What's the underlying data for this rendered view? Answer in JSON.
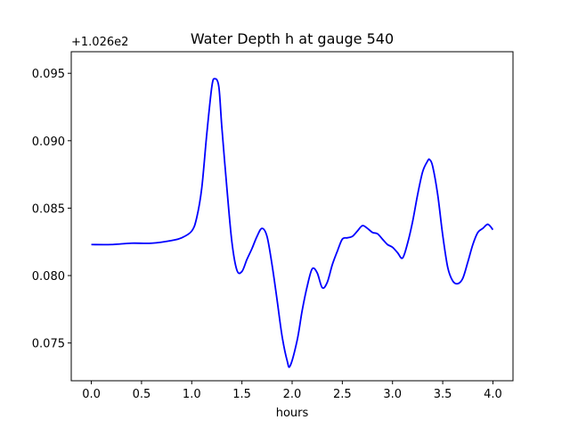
{
  "chart_data": {
    "type": "line",
    "title": "Water Depth h at gauge 540",
    "xlabel": "hours",
    "ylabel": "",
    "y_offset_label": "+1.026e2",
    "xlim": [
      -0.2,
      4.2
    ],
    "ylim": [
      0.0722,
      0.0966
    ],
    "x_ticks": [
      0.0,
      0.5,
      1.0,
      1.5,
      2.0,
      2.5,
      3.0,
      3.5,
      4.0
    ],
    "x_tick_labels": [
      "0.0",
      "0.5",
      "1.0",
      "1.5",
      "2.0",
      "2.5",
      "3.0",
      "3.5",
      "4.0"
    ],
    "y_ticks": [
      0.075,
      0.08,
      0.085,
      0.09,
      0.095
    ],
    "y_tick_labels": [
      "0.075",
      "0.080",
      "0.085",
      "0.090",
      "0.095"
    ],
    "grid": false,
    "series": [
      {
        "color": "#0000ff",
        "x": [
          0.0,
          0.2,
          0.4,
          0.6,
          0.8,
          0.9,
          1.0,
          1.05,
          1.1,
          1.15,
          1.2,
          1.23,
          1.27,
          1.3,
          1.35,
          1.4,
          1.45,
          1.5,
          1.55,
          1.6,
          1.65,
          1.7,
          1.75,
          1.8,
          1.85,
          1.9,
          1.95,
          1.98,
          2.05,
          2.1,
          2.15,
          2.2,
          2.25,
          2.3,
          2.35,
          2.4,
          2.45,
          2.5,
          2.55,
          2.6,
          2.65,
          2.7,
          2.75,
          2.8,
          2.85,
          2.9,
          2.95,
          3.0,
          3.05,
          3.1,
          3.15,
          3.2,
          3.25,
          3.3,
          3.35,
          3.37,
          3.4,
          3.45,
          3.5,
          3.55,
          3.6,
          3.65,
          3.7,
          3.75,
          3.8,
          3.85,
          3.9,
          3.95,
          4.0
        ],
        "y": [
          0.0823,
          0.0823,
          0.0824,
          0.0824,
          0.0826,
          0.0828,
          0.0833,
          0.0843,
          0.0865,
          0.0905,
          0.094,
          0.0946,
          0.094,
          0.091,
          0.0865,
          0.0825,
          0.0804,
          0.0803,
          0.0812,
          0.082,
          0.0829,
          0.0835,
          0.0829,
          0.0808,
          0.0782,
          0.0755,
          0.0737,
          0.0733,
          0.0752,
          0.0774,
          0.0792,
          0.0805,
          0.0802,
          0.0791,
          0.0795,
          0.0808,
          0.0818,
          0.0827,
          0.0828,
          0.0829,
          0.0833,
          0.0837,
          0.0835,
          0.0832,
          0.0831,
          0.0827,
          0.0823,
          0.0821,
          0.0817,
          0.0813,
          0.0824,
          0.084,
          0.086,
          0.0877,
          0.0885,
          0.0886,
          0.0881,
          0.086,
          0.083,
          0.0806,
          0.0796,
          0.0794,
          0.0798,
          0.081,
          0.0823,
          0.0832,
          0.0835,
          0.0838,
          0.0834
        ]
      }
    ]
  }
}
